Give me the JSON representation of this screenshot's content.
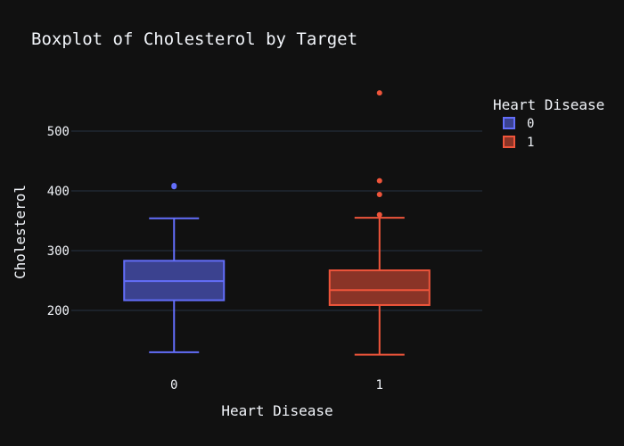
{
  "chart_data": {
    "type": "box",
    "title": "Boxplot of Cholesterol by Target",
    "xlabel": "Heart Disease",
    "ylabel": "Cholesterol",
    "ylim": [
      100,
      585
    ],
    "yticks": [
      200,
      300,
      400,
      500
    ],
    "categories": [
      "0",
      "1"
    ],
    "legend": {
      "title": "Heart Disease",
      "position": "top-right"
    },
    "grid": true,
    "series": [
      {
        "name": "0",
        "color": "#636efa",
        "fill": "#3b428f",
        "stats": {
          "lowerfence": 130,
          "q1": 217,
          "median": 249,
          "q3": 283,
          "upperfence": 354
        },
        "outliers": [
          409,
          407
        ]
      },
      {
        "name": "1",
        "color": "#ef553b",
        "fill": "#8a3427",
        "stats": {
          "lowerfence": 126,
          "q1": 209,
          "median": 234,
          "q3": 267,
          "upperfence": 355
        },
        "outliers": [
          564,
          417,
          394,
          360
        ]
      }
    ]
  }
}
